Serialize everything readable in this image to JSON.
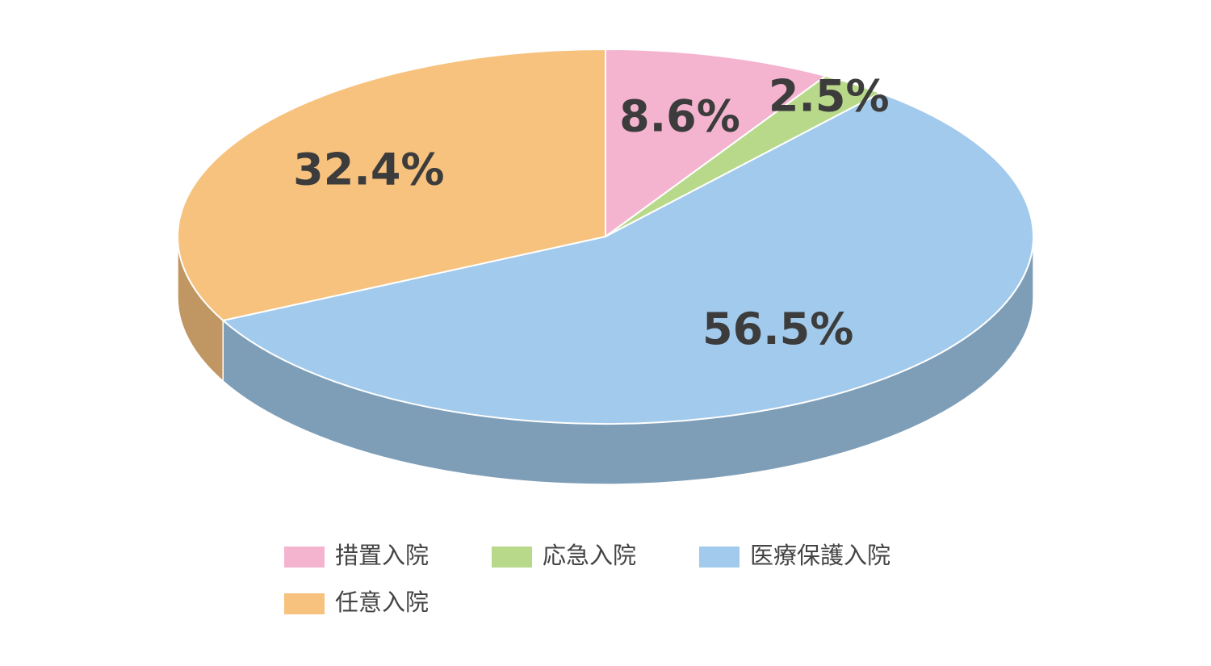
{
  "chart_data": {
    "type": "pie",
    "categories": [
      "措置入院",
      "応急入院",
      "医療保護入院",
      "任意入院"
    ],
    "values": [
      8.6,
      2.5,
      56.5,
      32.4
    ],
    "value_labels": [
      "8.6%",
      "2.5%",
      "56.5%",
      "32.4%"
    ],
    "colors": [
      "#f4b4cf",
      "#b8d98a",
      "#a2caec",
      "#f6c27e"
    ]
  }
}
